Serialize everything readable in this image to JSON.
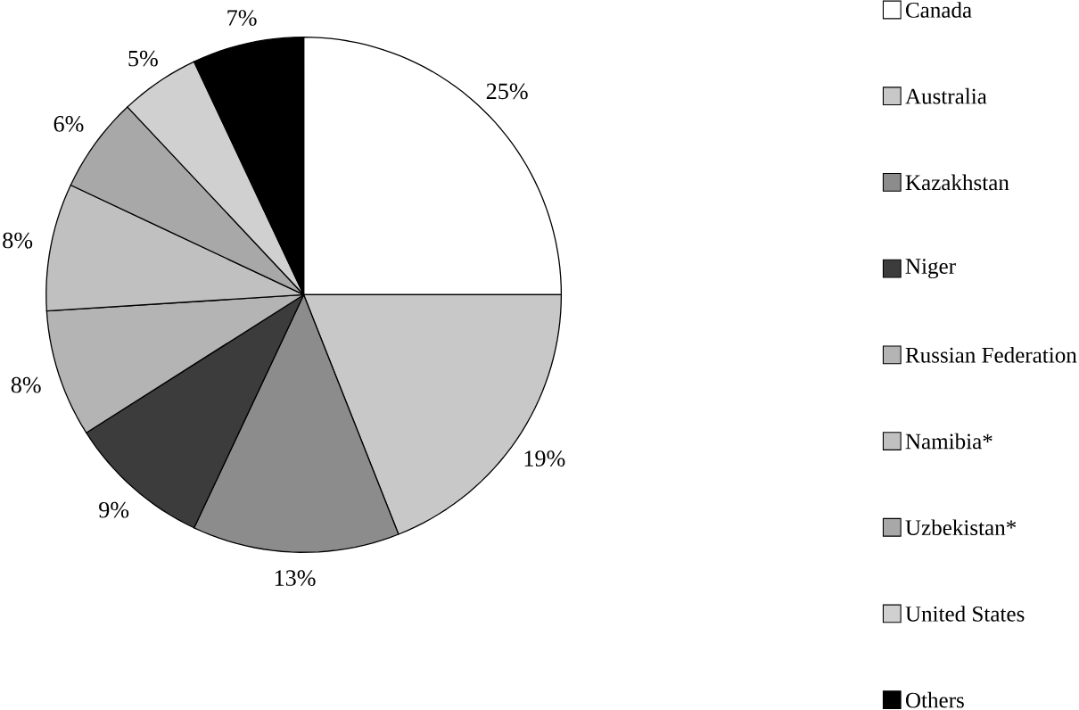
{
  "chart_data": {
    "type": "pie",
    "categories": [
      "Canada",
      "Australia",
      "Kazakhstan",
      "Niger",
      "Russian Federation",
      "Namibia*",
      "Uzbekistan*",
      "United States",
      "Others"
    ],
    "values": [
      25,
      19,
      13,
      9,
      8,
      8,
      6,
      5,
      7
    ],
    "colors": [
      "#ffffff",
      "#c8c8c8",
      "#8c8c8c",
      "#3c3c3c",
      "#b4b4b4",
      "#c0c0c0",
      "#a8a8a8",
      "#d0d0d0",
      "#000000"
    ],
    "value_labels": [
      "25%",
      "19%",
      "13%",
      "9%",
      "8%",
      "8%",
      "6%",
      "5%",
      "7%"
    ],
    "legend": "right"
  }
}
